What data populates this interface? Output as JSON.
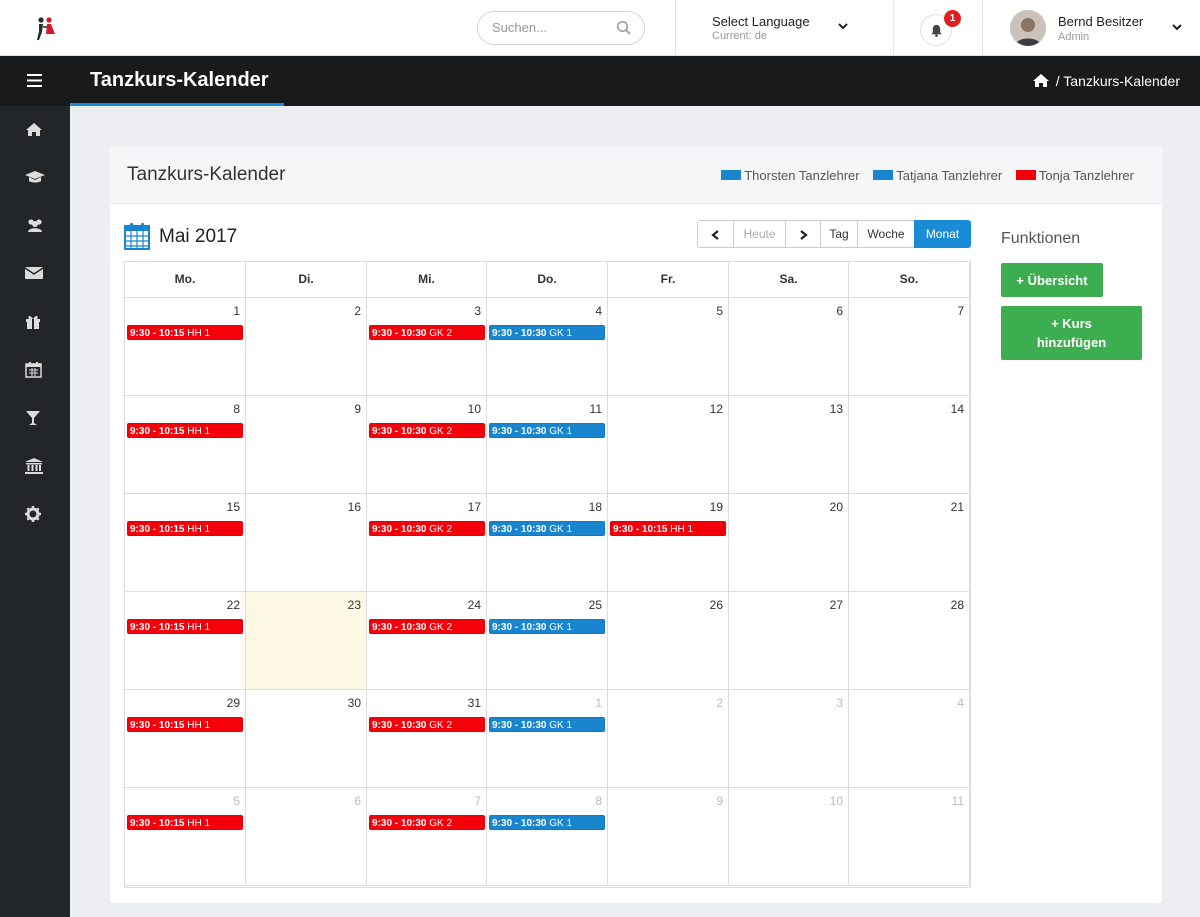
{
  "header": {
    "search_placeholder": "Suchen...",
    "language": {
      "label": "Select Language",
      "current": "Current: de"
    },
    "notifications": {
      "count": "1"
    },
    "user": {
      "name": "Bernd Besitzer",
      "role": "Admin"
    }
  },
  "titlebar": {
    "title": "Tanzkurs-Kalender",
    "breadcrumb_current": "/  Tanzkurs-Kalender"
  },
  "sidebar": {
    "items": [
      {
        "icon": "home-icon"
      },
      {
        "icon": "graduation-cap-icon"
      },
      {
        "icon": "users-icon"
      },
      {
        "icon": "envelope-icon"
      },
      {
        "icon": "gift-icon"
      },
      {
        "icon": "calendar-icon"
      },
      {
        "icon": "cocktail-icon"
      },
      {
        "icon": "bank-icon"
      },
      {
        "icon": "gear-icon"
      }
    ]
  },
  "panel": {
    "title": "Tanzkurs-Kalender",
    "legend": [
      {
        "label": "Thorsten Tanzlehrer",
        "color": "#1a85cf"
      },
      {
        "label": "Tatjana Tanzlehrer",
        "color": "#1a85cf"
      },
      {
        "label": "Tonja Tanzlehrer",
        "color": "#f3000a"
      }
    ]
  },
  "calendar": {
    "month_title": "Mai 2017",
    "buttons": {
      "today": "Heute",
      "day": "Tag",
      "week": "Woche",
      "month": "Monat"
    },
    "weekdays": [
      "Mo.",
      "Di.",
      "Mi.",
      "Do.",
      "Fr.",
      "Sa.",
      "So."
    ],
    "weeks": [
      [
        {
          "day": "1",
          "events": [
            {
              "time": "9:30 - 10:15",
              "title": "HH 1",
              "color": "red"
            }
          ]
        },
        {
          "day": "2",
          "events": []
        },
        {
          "day": "3",
          "events": [
            {
              "time": "9:30 - 10:30",
              "title": "GK 2",
              "color": "red"
            }
          ]
        },
        {
          "day": "4",
          "events": [
            {
              "time": "9:30 - 10:30",
              "title": "GK 1",
              "color": "blue"
            }
          ]
        },
        {
          "day": "5",
          "events": []
        },
        {
          "day": "6",
          "events": []
        },
        {
          "day": "7",
          "events": []
        }
      ],
      [
        {
          "day": "8",
          "events": [
            {
              "time": "9:30 - 10:15",
              "title": "HH 1",
              "color": "red"
            }
          ]
        },
        {
          "day": "9",
          "events": []
        },
        {
          "day": "10",
          "events": [
            {
              "time": "9:30 - 10:30",
              "title": "GK 2",
              "color": "red"
            }
          ]
        },
        {
          "day": "11",
          "events": [
            {
              "time": "9:30 - 10:30",
              "title": "GK 1",
              "color": "blue"
            }
          ]
        },
        {
          "day": "12",
          "events": []
        },
        {
          "day": "13",
          "events": []
        },
        {
          "day": "14",
          "events": []
        }
      ],
      [
        {
          "day": "15",
          "events": [
            {
              "time": "9:30 - 10:15",
              "title": "HH 1",
              "color": "red"
            }
          ]
        },
        {
          "day": "16",
          "events": []
        },
        {
          "day": "17",
          "events": [
            {
              "time": "9:30 - 10:30",
              "title": "GK 2",
              "color": "red"
            }
          ]
        },
        {
          "day": "18",
          "events": [
            {
              "time": "9:30 - 10:30",
              "title": "GK 1",
              "color": "blue"
            }
          ]
        },
        {
          "day": "19",
          "events": [
            {
              "time": "9:30 - 10:15",
              "title": "HH 1",
              "color": "red"
            }
          ]
        },
        {
          "day": "20",
          "events": []
        },
        {
          "day": "21",
          "events": []
        }
      ],
      [
        {
          "day": "22",
          "events": [
            {
              "time": "9:30 - 10:15",
              "title": "HH 1",
              "color": "red"
            }
          ]
        },
        {
          "day": "23",
          "today": true,
          "events": []
        },
        {
          "day": "24",
          "events": [
            {
              "time": "9:30 - 10:30",
              "title": "GK 2",
              "color": "red"
            }
          ]
        },
        {
          "day": "25",
          "events": [
            {
              "time": "9:30 - 10:30",
              "title": "GK 1",
              "color": "blue"
            }
          ]
        },
        {
          "day": "26",
          "events": []
        },
        {
          "day": "27",
          "events": []
        },
        {
          "day": "28",
          "events": []
        }
      ],
      [
        {
          "day": "29",
          "events": [
            {
              "time": "9:30 - 10:15",
              "title": "HH 1",
              "color": "red"
            }
          ]
        },
        {
          "day": "30",
          "events": []
        },
        {
          "day": "31",
          "events": [
            {
              "time": "9:30 - 10:30",
              "title": "GK 2",
              "color": "red"
            }
          ]
        },
        {
          "day": "1",
          "other": true,
          "events": [
            {
              "time": "9:30 - 10:30",
              "title": "GK 1",
              "color": "blue"
            }
          ]
        },
        {
          "day": "2",
          "other": true,
          "events": []
        },
        {
          "day": "3",
          "other": true,
          "events": []
        },
        {
          "day": "4",
          "other": true,
          "events": []
        }
      ],
      [
        {
          "day": "5",
          "other": true,
          "events": [
            {
              "time": "9:30 - 10:15",
              "title": "HH 1",
              "color": "red"
            }
          ]
        },
        {
          "day": "6",
          "other": true,
          "events": []
        },
        {
          "day": "7",
          "other": true,
          "events": [
            {
              "time": "9:30 - 10:30",
              "title": "GK 2",
              "color": "red"
            }
          ]
        },
        {
          "day": "8",
          "other": true,
          "events": [
            {
              "time": "9:30 - 10:30",
              "title": "GK 1",
              "color": "blue"
            }
          ]
        },
        {
          "day": "9",
          "other": true,
          "events": []
        },
        {
          "day": "10",
          "other": true,
          "events": []
        },
        {
          "day": "11",
          "other": true,
          "events": []
        }
      ]
    ]
  },
  "functions": {
    "title": "Funktionen",
    "overview_button": "+ Übersicht",
    "add_course_button_line1": "+ Kurs",
    "add_course_button_line2": "hinzufügen"
  }
}
